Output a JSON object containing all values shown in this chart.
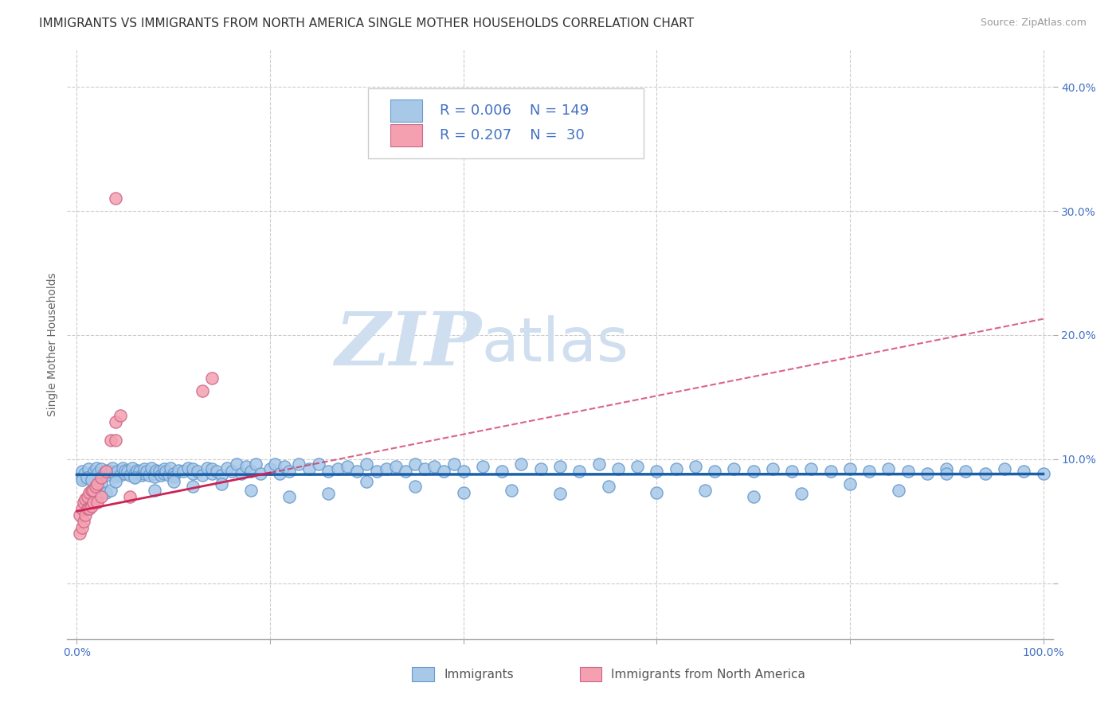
{
  "title": "IMMIGRANTS VS IMMIGRANTS FROM NORTH AMERICA SINGLE MOTHER HOUSEHOLDS CORRELATION CHART",
  "source": "Source: ZipAtlas.com",
  "ylabel": "Single Mother Households",
  "xlim": [
    -0.01,
    1.01
  ],
  "ylim": [
    -0.045,
    0.43
  ],
  "x_ticks": [
    0.0,
    0.2,
    0.4,
    0.6,
    0.8,
    1.0
  ],
  "x_tick_labels": [
    "0.0%",
    "",
    "",
    "",
    "",
    "100.0%"
  ],
  "y_ticks": [
    0.0,
    0.1,
    0.2,
    0.3,
    0.4
  ],
  "y_tick_labels": [
    "",
    "10.0%",
    "20.0%",
    "30.0%",
    "40.0%"
  ],
  "color_blue": "#a8c8e8",
  "color_blue_edge": "#6699cc",
  "color_pink": "#f4a0b0",
  "color_pink_edge": "#cc6688",
  "color_blue_line": "#1a5fa8",
  "color_pink_line": "#cc2255",
  "watermark_zip": "ZIP",
  "watermark_atlas": "atlas",
  "background_color": "#ffffff",
  "grid_color": "#cccccc",
  "tick_color": "#4472c4",
  "title_fontsize": 11,
  "axis_label_fontsize": 10,
  "tick_fontsize": 10,
  "legend_fontsize": 13,
  "blue_x": [
    0.005,
    0.005,
    0.008,
    0.012,
    0.015,
    0.018,
    0.02,
    0.02,
    0.022,
    0.025,
    0.028,
    0.03,
    0.032,
    0.035,
    0.037,
    0.04,
    0.04,
    0.042,
    0.045,
    0.047,
    0.05,
    0.05,
    0.052,
    0.055,
    0.057,
    0.06,
    0.06,
    0.062,
    0.065,
    0.067,
    0.07,
    0.07,
    0.072,
    0.075,
    0.077,
    0.08,
    0.08,
    0.082,
    0.085,
    0.087,
    0.09,
    0.09,
    0.092,
    0.095,
    0.097,
    0.1,
    0.1,
    0.105,
    0.11,
    0.115,
    0.12,
    0.12,
    0.125,
    0.13,
    0.135,
    0.14,
    0.14,
    0.145,
    0.15,
    0.155,
    0.16,
    0.165,
    0.17,
    0.175,
    0.18,
    0.185,
    0.19,
    0.2,
    0.205,
    0.21,
    0.215,
    0.22,
    0.23,
    0.24,
    0.25,
    0.26,
    0.27,
    0.28,
    0.29,
    0.3,
    0.31,
    0.32,
    0.33,
    0.34,
    0.35,
    0.36,
    0.37,
    0.38,
    0.39,
    0.4,
    0.42,
    0.44,
    0.46,
    0.48,
    0.5,
    0.52,
    0.54,
    0.56,
    0.58,
    0.6,
    0.62,
    0.64,
    0.66,
    0.68,
    0.7,
    0.72,
    0.74,
    0.76,
    0.78,
    0.8,
    0.82,
    0.84,
    0.86,
    0.88,
    0.9,
    0.92,
    0.94,
    0.96,
    0.98,
    1.0,
    0.005,
    0.01,
    0.015,
    0.02,
    0.025,
    0.03,
    0.035,
    0.04,
    0.06,
    0.08,
    0.1,
    0.12,
    0.15,
    0.18,
    0.22,
    0.26,
    0.3,
    0.35,
    0.4,
    0.45,
    0.5,
    0.55,
    0.6,
    0.65,
    0.7,
    0.75,
    0.8,
    0.85,
    0.9
  ],
  "blue_y": [
    0.09,
    0.085,
    0.088,
    0.092,
    0.087,
    0.09,
    0.093,
    0.086,
    0.089,
    0.092,
    0.088,
    0.087,
    0.091,
    0.09,
    0.093,
    0.088,
    0.086,
    0.09,
    0.087,
    0.093,
    0.088,
    0.091,
    0.09,
    0.087,
    0.093,
    0.088,
    0.086,
    0.091,
    0.09,
    0.087,
    0.088,
    0.092,
    0.09,
    0.087,
    0.093,
    0.088,
    0.086,
    0.091,
    0.09,
    0.087,
    0.088,
    0.092,
    0.09,
    0.087,
    0.093,
    0.088,
    0.086,
    0.091,
    0.09,
    0.093,
    0.088,
    0.092,
    0.09,
    0.087,
    0.093,
    0.088,
    0.092,
    0.09,
    0.087,
    0.093,
    0.09,
    0.096,
    0.088,
    0.094,
    0.09,
    0.096,
    0.088,
    0.092,
    0.096,
    0.088,
    0.094,
    0.09,
    0.096,
    0.092,
    0.096,
    0.09,
    0.092,
    0.094,
    0.09,
    0.096,
    0.09,
    0.092,
    0.094,
    0.09,
    0.096,
    0.092,
    0.094,
    0.09,
    0.096,
    0.09,
    0.094,
    0.09,
    0.096,
    0.092,
    0.094,
    0.09,
    0.096,
    0.092,
    0.094,
    0.09,
    0.092,
    0.094,
    0.09,
    0.092,
    0.09,
    0.092,
    0.09,
    0.092,
    0.09,
    0.092,
    0.09,
    0.092,
    0.09,
    0.088,
    0.092,
    0.09,
    0.088,
    0.092,
    0.09,
    0.088,
    0.083,
    0.085,
    0.083,
    0.076,
    0.08,
    0.073,
    0.075,
    0.082,
    0.085,
    0.075,
    0.082,
    0.078,
    0.08,
    0.075,
    0.07,
    0.072,
    0.082,
    0.078,
    0.073,
    0.075,
    0.072,
    0.078,
    0.073,
    0.075,
    0.07,
    0.072,
    0.08,
    0.075,
    0.088
  ],
  "pink_x": [
    0.003,
    0.003,
    0.005,
    0.005,
    0.007,
    0.007,
    0.009,
    0.009,
    0.011,
    0.011,
    0.013,
    0.013,
    0.015,
    0.015,
    0.017,
    0.017,
    0.019,
    0.021,
    0.021,
    0.025,
    0.025,
    0.03,
    0.035,
    0.04,
    0.04,
    0.045,
    0.13,
    0.14,
    0.055,
    0.04
  ],
  "pink_y": [
    0.055,
    0.04,
    0.06,
    0.045,
    0.065,
    0.05,
    0.068,
    0.055,
    0.07,
    0.06,
    0.073,
    0.06,
    0.075,
    0.062,
    0.075,
    0.065,
    0.078,
    0.08,
    0.065,
    0.085,
    0.07,
    0.09,
    0.115,
    0.115,
    0.13,
    0.135,
    0.155,
    0.165,
    0.07,
    0.31
  ]
}
